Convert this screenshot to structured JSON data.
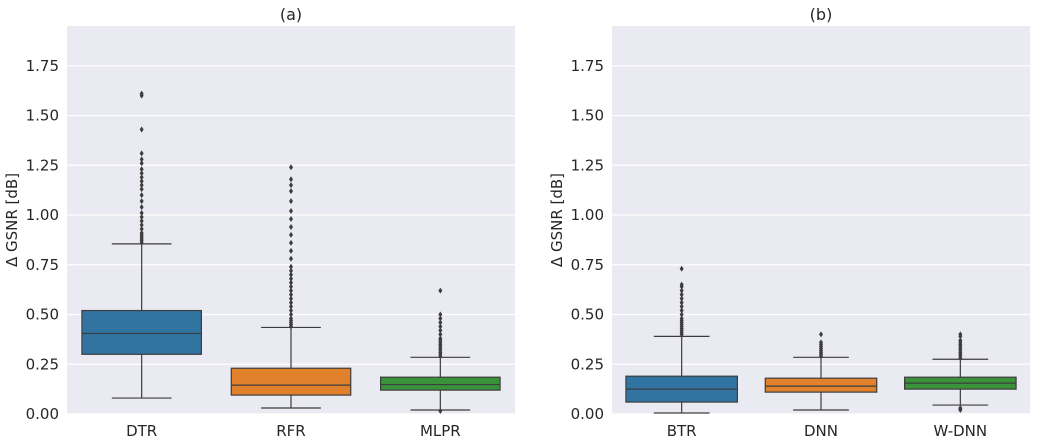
{
  "chart_data": [
    {
      "type": "box",
      "title": "(a)",
      "xlabel": "",
      "ylabel": "Δ GSNR [dB]",
      "ylim": [
        0,
        1.95
      ],
      "yticks": [
        "0.00",
        "0.25",
        "0.50",
        "0.75",
        "1.00",
        "1.25",
        "1.50",
        "1.75"
      ],
      "grid": true,
      "series": [
        {
          "name": "DTR",
          "color": "#3274a1",
          "whisker_low": 0.08,
          "q1": 0.3,
          "median": 0.405,
          "q3": 0.52,
          "whisker_high": 0.855,
          "outliers": [
            0.86,
            0.87,
            0.88,
            0.89,
            0.9,
            0.91,
            0.93,
            0.95,
            0.97,
            0.99,
            1.01,
            1.04,
            1.07,
            1.1,
            1.13,
            1.15,
            1.17,
            1.19,
            1.21,
            1.23,
            1.26,
            1.28,
            1.31,
            1.43,
            1.6,
            1.61
          ]
        },
        {
          "name": "RFR",
          "color": "#e1812c",
          "whisker_low": 0.03,
          "q1": 0.095,
          "median": 0.145,
          "q3": 0.23,
          "whisker_high": 0.435,
          "outliers": [
            0.44,
            0.45,
            0.46,
            0.47,
            0.48,
            0.5,
            0.52,
            0.54,
            0.56,
            0.58,
            0.6,
            0.62,
            0.64,
            0.66,
            0.68,
            0.7,
            0.72,
            0.74,
            0.78,
            0.82,
            0.86,
            0.9,
            0.94,
            0.98,
            1.02,
            1.07,
            1.12,
            1.15,
            1.18,
            1.24
          ]
        },
        {
          "name": "MLPR",
          "color": "#3a923a",
          "whisker_low": 0.02,
          "q1": 0.12,
          "median": 0.148,
          "q3": 0.185,
          "whisker_high": 0.285,
          "outliers": [
            0.29,
            0.3,
            0.31,
            0.32,
            0.33,
            0.34,
            0.35,
            0.36,
            0.37,
            0.38,
            0.4,
            0.42,
            0.44,
            0.46,
            0.48,
            0.5,
            0.62,
            0.015
          ]
        }
      ]
    },
    {
      "type": "box",
      "title": "(b)",
      "xlabel": "",
      "ylabel": "Δ GSNR [dB]",
      "ylim": [
        0,
        1.95
      ],
      "yticks": [
        "0.00",
        "0.25",
        "0.50",
        "0.75",
        "1.00",
        "1.25",
        "1.50",
        "1.75"
      ],
      "grid": true,
      "series": [
        {
          "name": "BTR",
          "color": "#3274a1",
          "whisker_low": 0.005,
          "q1": 0.06,
          "median": 0.125,
          "q3": 0.19,
          "whisker_high": 0.39,
          "outliers": [
            0.4,
            0.41,
            0.42,
            0.43,
            0.44,
            0.45,
            0.46,
            0.47,
            0.48,
            0.5,
            0.52,
            0.54,
            0.56,
            0.58,
            0.6,
            0.62,
            0.64,
            0.65,
            0.73
          ]
        },
        {
          "name": "DNN",
          "color": "#e1812c",
          "whisker_low": 0.02,
          "q1": 0.11,
          "median": 0.14,
          "q3": 0.18,
          "whisker_high": 0.285,
          "outliers": [
            0.29,
            0.3,
            0.31,
            0.32,
            0.33,
            0.34,
            0.35,
            0.36,
            0.4
          ]
        },
        {
          "name": "W-DNN",
          "color": "#3a923a",
          "whisker_low": 0.045,
          "q1": 0.125,
          "median": 0.155,
          "q3": 0.185,
          "whisker_high": 0.275,
          "outliers": [
            0.28,
            0.29,
            0.3,
            0.31,
            0.32,
            0.33,
            0.34,
            0.35,
            0.36,
            0.37,
            0.39,
            0.4,
            0.02,
            0.025,
            0.03
          ]
        }
      ]
    }
  ]
}
